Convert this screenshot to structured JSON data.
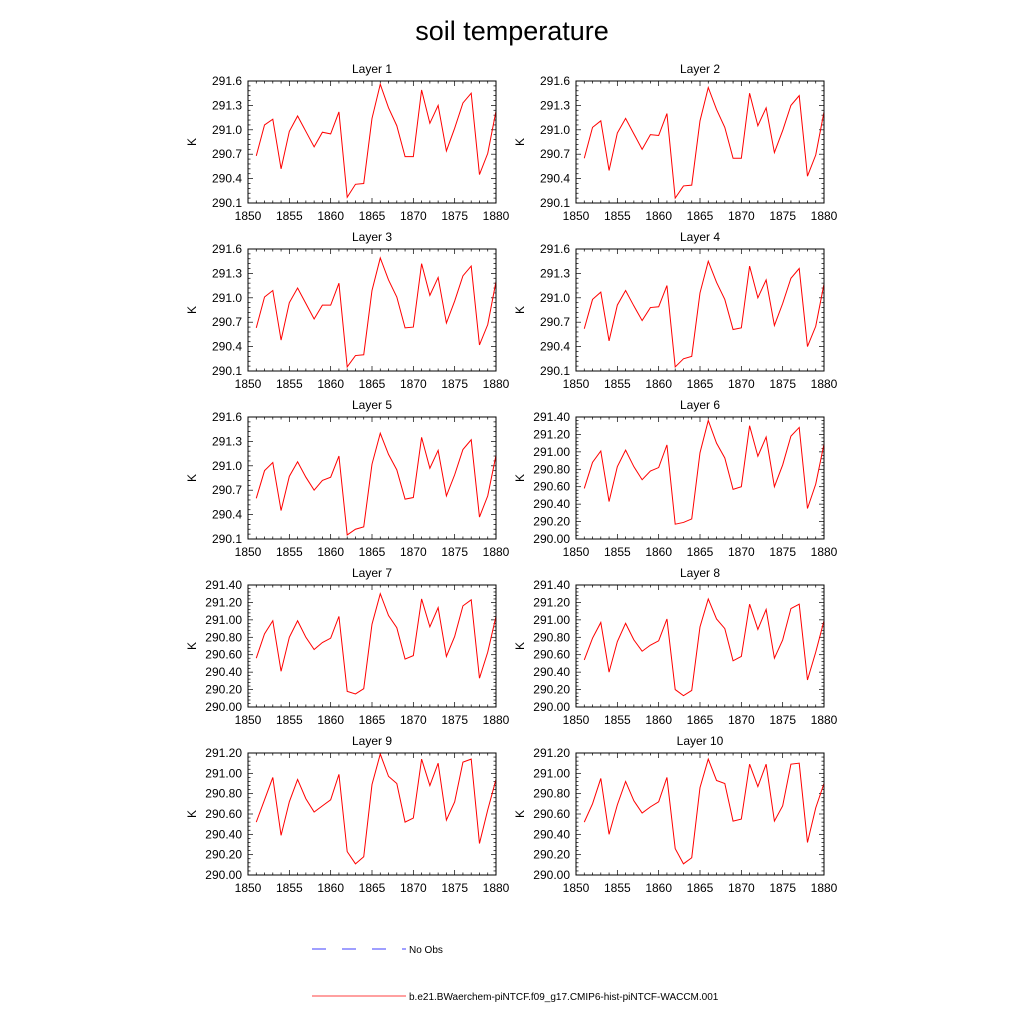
{
  "title": "soil temperature",
  "legend": {
    "obs_label": "No Obs",
    "model_label": "b.e21.BWaerchem-piNTCF.f09_g17.CMIP6-hist-piNTCF-WACCM.001",
    "obs_color": "#0000ff",
    "model_color": "#ff0000"
  },
  "chart_data": [
    {
      "type": "line",
      "title": "Layer 1",
      "ylabel": "K",
      "xlim": [
        1850,
        1880
      ],
      "ylim": [
        290.1,
        291.6
      ],
      "xticks": [
        1850,
        1855,
        1860,
        1865,
        1870,
        1875,
        1880
      ],
      "yticks": [
        "290.1",
        "290.4",
        "290.7",
        "291.0",
        "291.3",
        "291.6"
      ],
      "series": [
        {
          "color": "#ff0000",
          "x": [
            1851,
            1852,
            1853,
            1854,
            1855,
            1856,
            1857,
            1858,
            1859,
            1860,
            1861,
            1862,
            1863,
            1864,
            1865,
            1866,
            1867,
            1868,
            1869,
            1870,
            1871,
            1872,
            1873,
            1874,
            1875,
            1876,
            1877,
            1878,
            1879,
            1880
          ],
          "values": [
            290.68,
            291.06,
            291.13,
            290.52,
            290.98,
            291.17,
            290.98,
            290.79,
            290.97,
            290.95,
            291.22,
            290.17,
            290.33,
            290.34,
            291.14,
            291.56,
            291.27,
            291.05,
            290.67,
            290.67,
            291.49,
            291.08,
            291.3,
            290.74,
            291.02,
            291.33,
            291.45,
            290.45,
            290.71,
            291.23
          ]
        }
      ]
    },
    {
      "type": "line",
      "title": "Layer 2",
      "ylabel": "K",
      "xlim": [
        1850,
        1880
      ],
      "ylim": [
        290.1,
        291.6
      ],
      "xticks": [
        1850,
        1855,
        1860,
        1865,
        1870,
        1875,
        1880
      ],
      "yticks": [
        "290.1",
        "290.4",
        "290.7",
        "291.0",
        "291.3",
        "291.6"
      ],
      "series": [
        {
          "color": "#ff0000",
          "x": [
            1851,
            1852,
            1853,
            1854,
            1855,
            1856,
            1857,
            1858,
            1859,
            1860,
            1861,
            1862,
            1863,
            1864,
            1865,
            1866,
            1867,
            1868,
            1869,
            1870,
            1871,
            1872,
            1873,
            1874,
            1875,
            1876,
            1877,
            1878,
            1879,
            1880
          ],
          "values": [
            290.65,
            291.03,
            291.11,
            290.5,
            290.96,
            291.14,
            290.95,
            290.76,
            290.94,
            290.93,
            291.2,
            290.16,
            290.31,
            290.32,
            291.11,
            291.52,
            291.25,
            291.03,
            290.65,
            290.65,
            291.45,
            291.05,
            291.27,
            290.72,
            290.99,
            291.3,
            291.42,
            290.43,
            290.69,
            291.22
          ]
        }
      ]
    },
    {
      "type": "line",
      "title": "Layer 3",
      "ylabel": "K",
      "xlim": [
        1850,
        1880
      ],
      "ylim": [
        290.1,
        291.6
      ],
      "xticks": [
        1850,
        1855,
        1860,
        1865,
        1870,
        1875,
        1880
      ],
      "yticks": [
        "290.1",
        "290.4",
        "290.7",
        "291.0",
        "291.3",
        "291.6"
      ],
      "series": [
        {
          "color": "#ff0000",
          "x": [
            1851,
            1852,
            1853,
            1854,
            1855,
            1856,
            1857,
            1858,
            1859,
            1860,
            1861,
            1862,
            1863,
            1864,
            1865,
            1866,
            1867,
            1868,
            1869,
            1870,
            1871,
            1872,
            1873,
            1874,
            1875,
            1876,
            1877,
            1878,
            1879,
            1880
          ],
          "values": [
            290.63,
            291.01,
            291.09,
            290.48,
            290.94,
            291.12,
            290.93,
            290.74,
            290.91,
            290.91,
            291.18,
            290.15,
            290.29,
            290.3,
            291.09,
            291.49,
            291.22,
            291.01,
            290.63,
            290.64,
            291.42,
            291.03,
            291.25,
            290.69,
            290.96,
            291.27,
            291.39,
            290.42,
            290.67,
            291.2
          ]
        }
      ]
    },
    {
      "type": "line",
      "title": "Layer 4",
      "ylabel": "K",
      "xlim": [
        1850,
        1880
      ],
      "ylim": [
        290.1,
        291.6
      ],
      "xticks": [
        1850,
        1855,
        1860,
        1865,
        1870,
        1875,
        1880
      ],
      "yticks": [
        "290.1",
        "290.4",
        "290.7",
        "291.0",
        "291.3",
        "291.6"
      ],
      "series": [
        {
          "color": "#ff0000",
          "x": [
            1851,
            1852,
            1853,
            1854,
            1855,
            1856,
            1857,
            1858,
            1859,
            1860,
            1861,
            1862,
            1863,
            1864,
            1865,
            1866,
            1867,
            1868,
            1869,
            1870,
            1871,
            1872,
            1873,
            1874,
            1875,
            1876,
            1877,
            1878,
            1879,
            1880
          ],
          "values": [
            290.62,
            290.98,
            291.07,
            290.47,
            290.91,
            291.09,
            290.9,
            290.72,
            290.88,
            290.89,
            291.15,
            290.15,
            290.25,
            290.28,
            291.06,
            291.45,
            291.19,
            290.98,
            290.61,
            290.63,
            291.39,
            291.0,
            291.22,
            290.66,
            290.93,
            291.24,
            291.36,
            290.4,
            290.65,
            291.17
          ]
        }
      ]
    },
    {
      "type": "line",
      "title": "Layer 5",
      "ylabel": "K",
      "xlim": [
        1850,
        1880
      ],
      "ylim": [
        290.1,
        291.6
      ],
      "xticks": [
        1850,
        1855,
        1860,
        1865,
        1870,
        1875,
        1880
      ],
      "yticks": [
        "290.1",
        "290.4",
        "290.7",
        "291.0",
        "291.3",
        "291.6"
      ],
      "series": [
        {
          "color": "#ff0000",
          "x": [
            1851,
            1852,
            1853,
            1854,
            1855,
            1856,
            1857,
            1858,
            1859,
            1860,
            1861,
            1862,
            1863,
            1864,
            1865,
            1866,
            1867,
            1868,
            1869,
            1870,
            1871,
            1872,
            1873,
            1874,
            1875,
            1876,
            1877,
            1878,
            1879,
            1880
          ],
          "values": [
            290.6,
            290.94,
            291.04,
            290.45,
            290.87,
            291.05,
            290.86,
            290.7,
            290.82,
            290.86,
            291.12,
            290.15,
            290.22,
            290.25,
            291.02,
            291.4,
            291.14,
            290.95,
            290.59,
            290.61,
            291.35,
            290.97,
            291.19,
            290.63,
            290.89,
            291.2,
            291.32,
            290.37,
            290.63,
            291.13
          ]
        }
      ]
    },
    {
      "type": "line",
      "title": "Layer 6",
      "ylabel": "K",
      "xlim": [
        1850,
        1880
      ],
      "ylim": [
        290.0,
        291.4
      ],
      "xticks": [
        1850,
        1855,
        1860,
        1865,
        1870,
        1875,
        1880
      ],
      "yticks": [
        "290.00",
        "290.20",
        "290.40",
        "290.60",
        "290.80",
        "291.00",
        "291.20",
        "291.40"
      ],
      "series": [
        {
          "color": "#ff0000",
          "x": [
            1851,
            1852,
            1853,
            1854,
            1855,
            1856,
            1857,
            1858,
            1859,
            1860,
            1861,
            1862,
            1863,
            1864,
            1865,
            1866,
            1867,
            1868,
            1869,
            1870,
            1871,
            1872,
            1873,
            1874,
            1875,
            1876,
            1877,
            1878,
            1879,
            1880
          ],
          "values": [
            290.58,
            290.88,
            291.01,
            290.43,
            290.83,
            291.02,
            290.83,
            290.68,
            290.78,
            290.82,
            291.08,
            290.17,
            290.19,
            290.23,
            290.99,
            291.36,
            291.1,
            290.93,
            290.57,
            290.6,
            291.3,
            290.95,
            291.17,
            290.6,
            290.85,
            291.18,
            291.28,
            290.35,
            290.63,
            291.09
          ]
        }
      ]
    },
    {
      "type": "line",
      "title": "Layer 7",
      "ylabel": "K",
      "xlim": [
        1850,
        1880
      ],
      "ylim": [
        290.0,
        291.4
      ],
      "xticks": [
        1850,
        1855,
        1860,
        1865,
        1870,
        1875,
        1880
      ],
      "yticks": [
        "290.00",
        "290.20",
        "290.40",
        "290.60",
        "290.80",
        "291.00",
        "291.20",
        "291.40"
      ],
      "series": [
        {
          "color": "#ff0000",
          "x": [
            1851,
            1852,
            1853,
            1854,
            1855,
            1856,
            1857,
            1858,
            1859,
            1860,
            1861,
            1862,
            1863,
            1864,
            1865,
            1866,
            1867,
            1868,
            1869,
            1870,
            1871,
            1872,
            1873,
            1874,
            1875,
            1876,
            1877,
            1878,
            1879,
            1880
          ],
          "values": [
            290.56,
            290.84,
            290.99,
            290.41,
            290.8,
            290.99,
            290.8,
            290.66,
            290.74,
            290.79,
            291.04,
            290.18,
            290.15,
            290.21,
            290.95,
            291.3,
            291.05,
            290.91,
            290.55,
            290.59,
            291.24,
            290.92,
            291.14,
            290.58,
            290.81,
            291.16,
            291.23,
            290.33,
            290.63,
            291.04
          ]
        }
      ]
    },
    {
      "type": "line",
      "title": "Layer 8",
      "ylabel": "K",
      "xlim": [
        1850,
        1880
      ],
      "ylim": [
        290.0,
        291.4
      ],
      "xticks": [
        1850,
        1855,
        1860,
        1865,
        1870,
        1875,
        1880
      ],
      "yticks": [
        "290.00",
        "290.20",
        "290.40",
        "290.60",
        "290.80",
        "291.00",
        "291.20",
        "291.40"
      ],
      "series": [
        {
          "color": "#ff0000",
          "x": [
            1851,
            1852,
            1853,
            1854,
            1855,
            1856,
            1857,
            1858,
            1859,
            1860,
            1861,
            1862,
            1863,
            1864,
            1865,
            1866,
            1867,
            1868,
            1869,
            1870,
            1871,
            1872,
            1873,
            1874,
            1875,
            1876,
            1877,
            1878,
            1879,
            1880
          ],
          "values": [
            290.54,
            290.79,
            290.97,
            290.4,
            290.75,
            290.96,
            290.77,
            290.64,
            290.71,
            290.76,
            291.01,
            290.2,
            290.13,
            290.19,
            290.92,
            291.24,
            291.01,
            290.9,
            290.53,
            290.58,
            291.18,
            290.89,
            291.12,
            290.56,
            290.77,
            291.13,
            291.18,
            290.31,
            290.63,
            290.99
          ]
        }
      ]
    },
    {
      "type": "line",
      "title": "Layer 9",
      "ylabel": "K",
      "xlim": [
        1850,
        1880
      ],
      "ylim": [
        290.0,
        291.2
      ],
      "xticks": [
        1850,
        1855,
        1860,
        1865,
        1870,
        1875,
        1880
      ],
      "yticks": [
        "290.00",
        "290.20",
        "290.40",
        "290.60",
        "290.80",
        "291.00",
        "291.20"
      ],
      "series": [
        {
          "color": "#ff0000",
          "x": [
            1851,
            1852,
            1853,
            1854,
            1855,
            1856,
            1857,
            1858,
            1859,
            1860,
            1861,
            1862,
            1863,
            1864,
            1865,
            1866,
            1867,
            1868,
            1869,
            1870,
            1871,
            1872,
            1873,
            1874,
            1875,
            1876,
            1877,
            1878,
            1879,
            1880
          ],
          "values": [
            290.52,
            290.74,
            290.96,
            290.39,
            290.72,
            290.94,
            290.75,
            290.62,
            290.68,
            290.74,
            290.99,
            290.23,
            290.11,
            290.18,
            290.89,
            291.19,
            290.97,
            290.9,
            290.52,
            290.56,
            291.14,
            290.88,
            291.1,
            290.54,
            290.72,
            291.11,
            291.14,
            290.31,
            290.64,
            290.94
          ]
        }
      ]
    },
    {
      "type": "line",
      "title": "Layer 10",
      "ylabel": "K",
      "xlim": [
        1850,
        1880
      ],
      "ylim": [
        290.0,
        291.2
      ],
      "xticks": [
        1850,
        1855,
        1860,
        1865,
        1870,
        1875,
        1880
      ],
      "yticks": [
        "290.00",
        "290.20",
        "290.40",
        "290.60",
        "290.80",
        "291.00",
        "291.20"
      ],
      "series": [
        {
          "color": "#ff0000",
          "x": [
            1851,
            1852,
            1853,
            1854,
            1855,
            1856,
            1857,
            1858,
            1859,
            1860,
            1861,
            1862,
            1863,
            1864,
            1865,
            1866,
            1867,
            1868,
            1869,
            1870,
            1871,
            1872,
            1873,
            1874,
            1875,
            1876,
            1877,
            1878,
            1879,
            1880
          ],
          "values": [
            290.52,
            290.7,
            290.95,
            290.4,
            290.69,
            290.92,
            290.73,
            290.61,
            290.67,
            290.72,
            290.96,
            290.26,
            290.11,
            290.17,
            290.86,
            291.14,
            290.93,
            290.9,
            290.53,
            290.55,
            291.09,
            290.87,
            291.09,
            290.53,
            290.68,
            291.09,
            291.1,
            290.32,
            290.66,
            290.9
          ]
        }
      ]
    }
  ]
}
